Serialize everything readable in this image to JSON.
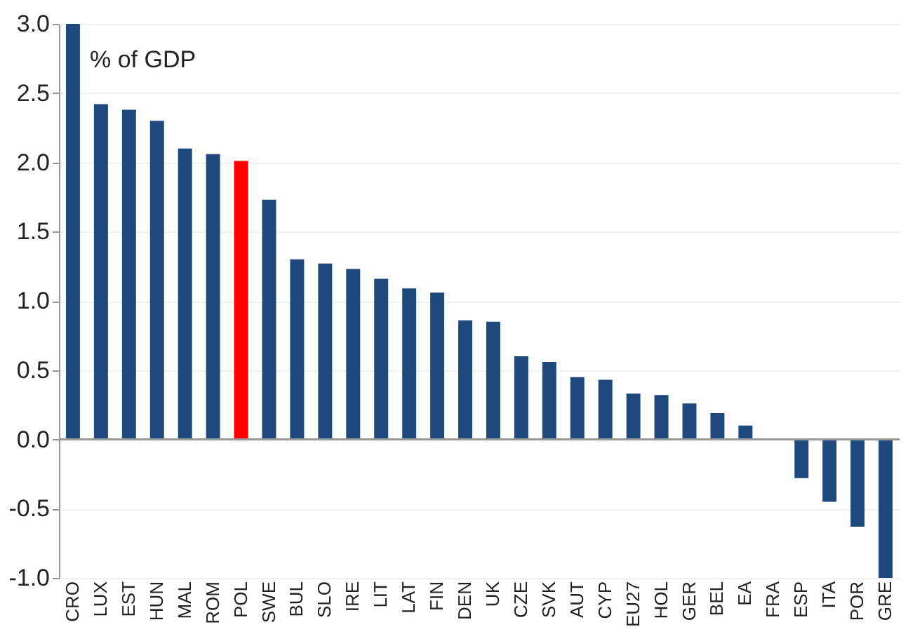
{
  "chart_data": {
    "type": "bar",
    "categories": [
      "CRO",
      "LUX",
      "EST",
      "HUN",
      "MAL",
      "ROM",
      "POL",
      "SWE",
      "BUL",
      "SLO",
      "IRE",
      "LIT",
      "LAT",
      "FIN",
      "DEN",
      "UK",
      "CZE",
      "SVK",
      "AUT",
      "CYP",
      "EU27",
      "HOL",
      "GER",
      "BEL",
      "EA",
      "FRA",
      "ESP",
      "ITA",
      "POR",
      "GRE"
    ],
    "values": [
      3.0,
      2.42,
      2.38,
      2.3,
      2.1,
      2.06,
      2.01,
      1.73,
      1.3,
      1.27,
      1.23,
      1.16,
      1.09,
      1.06,
      0.86,
      0.85,
      0.6,
      0.56,
      0.45,
      0.43,
      0.33,
      0.32,
      0.26,
      0.19,
      0.1,
      0.0,
      -0.28,
      -0.45,
      -0.63,
      -1.0
    ],
    "colors": [
      "#1f497d",
      "#1f497d",
      "#1f497d",
      "#1f497d",
      "#1f497d",
      "#1f497d",
      "#ff0000",
      "#1f497d",
      "#1f497d",
      "#1f497d",
      "#1f497d",
      "#1f497d",
      "#1f497d",
      "#1f497d",
      "#1f497d",
      "#1f497d",
      "#1f497d",
      "#1f497d",
      "#1f497d",
      "#1f497d",
      "#1f497d",
      "#1f497d",
      "#1f497d",
      "#1f497d",
      "#1f497d",
      "#1f497d",
      "#1f497d",
      "#1f497d",
      "#1f497d",
      "#1f497d"
    ],
    "ylim": [
      -1.0,
      3.0
    ],
    "yticks": [
      {
        "value": -1.0,
        "label": "-1.0"
      },
      {
        "value": -0.5,
        "label": "-0.5"
      },
      {
        "value": 0,
        "label": "0.0"
      },
      {
        "value": 0.5,
        "label": "0.5"
      },
      {
        "value": 1.0,
        "label": "1.0"
      },
      {
        "value": 1.5,
        "label": "1.5"
      },
      {
        "value": 2.0,
        "label": "2.0"
      },
      {
        "value": 2.5,
        "label": "2.5"
      },
      {
        "value": 3.0,
        "label": "3.0"
      }
    ],
    "annotations": [
      "% of GDP"
    ],
    "grid": "y"
  }
}
